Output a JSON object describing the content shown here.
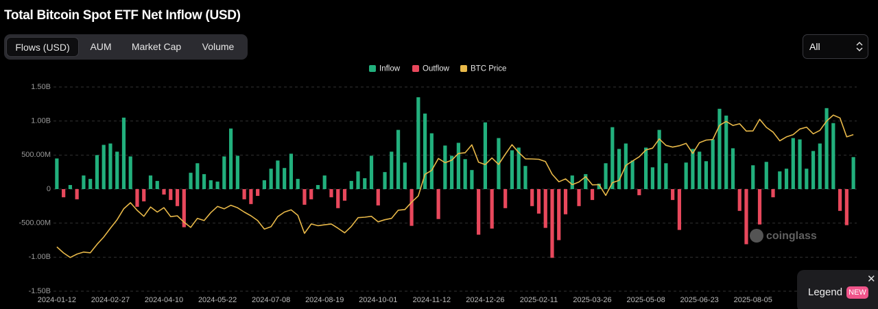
{
  "header": {
    "title": "Total Bitcoin Spot ETF Net Inflow (USD)"
  },
  "tabs": [
    "Flows (USD)",
    "AUM",
    "Market Cap",
    "Volume"
  ],
  "range_select": "All",
  "watermark": "coinglass",
  "legend_popup": {
    "label": "Legend",
    "badge": "NEW"
  },
  "chart_data": {
    "type": "bar",
    "categories": [
      "2024-01-12",
      null,
      null,
      null,
      null,
      null,
      null,
      null,
      "2024-02-27",
      null,
      null,
      null,
      null,
      null,
      null,
      null,
      "2024-04-10",
      null,
      null,
      null,
      null,
      null,
      null,
      null,
      "2024-05-22",
      null,
      null,
      null,
      null,
      null,
      null,
      null,
      "2024-07-08",
      null,
      null,
      null,
      null,
      null,
      null,
      null,
      "2024-08-19",
      null,
      null,
      null,
      null,
      null,
      null,
      null,
      "2024-10-01",
      null,
      null,
      null,
      null,
      null,
      null,
      null,
      "2024-11-12",
      null,
      null,
      null,
      null,
      null,
      null,
      null,
      "2024-12-26",
      null,
      null,
      null,
      null,
      null,
      null,
      null,
      "2025-02-11",
      null,
      null,
      null,
      null,
      null,
      null,
      null,
      "2025-03-26",
      null,
      null,
      null,
      null,
      null,
      null,
      null,
      "2025-05-08",
      null,
      null,
      null,
      null,
      null,
      null,
      null,
      "2025-06-23",
      null,
      null,
      null,
      null,
      null,
      null,
      null,
      "2025-08-05",
      null,
      null,
      null,
      null,
      null,
      null,
      null,
      null,
      null,
      null,
      null,
      null,
      null,
      null,
      null
    ],
    "series": [
      {
        "name": "Inflow",
        "type": "bar",
        "color": "#22b07d",
        "values": [
          450000000.0,
          null,
          60000000.0,
          null,
          200000000.0,
          150000000.0,
          500000000.0,
          650000000.0,
          670000000.0,
          550000000.0,
          1050000000.0,
          480000000.0,
          null,
          null,
          200000000.0,
          120000000.0,
          null,
          null,
          null,
          null,
          240000000.0,
          380000000.0,
          220000000.0,
          130000000.0,
          110000000.0,
          480000000.0,
          890000000.0,
          490000000.0,
          null,
          null,
          null,
          130000000.0,
          300000000.0,
          420000000.0,
          310000000.0,
          520000000.0,
          150000000.0,
          null,
          null,
          60000000.0,
          200000000.0,
          null,
          null,
          null,
          120000000.0,
          260000000.0,
          160000000.0,
          490000000.0,
          null,
          250000000.0,
          550000000.0,
          870000000.0,
          390000000.0,
          null,
          1350000000.0,
          1110000000.0,
          820000000.0,
          null,
          640000000.0,
          490000000.0,
          680000000.0,
          440000000.0,
          280000000.0,
          null,
          980000000.0,
          null,
          750000000.0,
          null,
          570000000.0,
          610000000.0,
          340000000.0,
          null,
          null,
          null,
          null,
          null,
          null,
          200000000.0,
          null,
          220000000.0,
          null,
          80000000.0,
          380000000.0,
          910000000.0,
          590000000.0,
          670000000.0,
          420000000.0,
          null,
          610000000.0,
          320000000.0,
          870000000.0,
          380000000.0,
          null,
          null,
          390000000.0,
          590000000.0,
          550000000.0,
          410000000.0,
          730000000.0,
          1180000000.0,
          1080000000.0,
          600000000.0,
          null,
          null,
          350000000.0,
          null,
          400000000.0,
          null,
          260000000.0,
          300000000.0,
          750000000.0,
          730000000.0,
          300000000.0,
          560000000.0,
          670000000.0,
          1190000000.0,
          970000000.0,
          null,
          null,
          470000000.0
        ]
      },
      {
        "name": "Outflow",
        "type": "bar",
        "color": "#e8485c",
        "values": [
          null,
          -120000000.0,
          null,
          -150000000.0,
          null,
          null,
          null,
          null,
          null,
          null,
          null,
          null,
          -260000000.0,
          -180000000.0,
          null,
          null,
          -80000000.0,
          -160000000.0,
          -250000000.0,
          -560000000.0,
          null,
          null,
          null,
          null,
          null,
          null,
          null,
          null,
          -150000000.0,
          -220000000.0,
          -100000000.0,
          null,
          null,
          null,
          null,
          null,
          null,
          -230000000.0,
          -150000000.0,
          null,
          null,
          -120000000.0,
          -280000000.0,
          -170000000.0,
          null,
          null,
          null,
          null,
          -240000000.0,
          null,
          null,
          null,
          null,
          -540000000.0,
          null,
          null,
          null,
          -440000000.0,
          null,
          null,
          null,
          null,
          null,
          -670000000.0,
          null,
          -580000000.0,
          null,
          -280000000.0,
          null,
          null,
          null,
          -250000000.0,
          -360000000.0,
          -570000000.0,
          -1010000000.0,
          -750000000.0,
          -370000000.0,
          null,
          -250000000.0,
          null,
          -160000000.0,
          null,
          null,
          null,
          null,
          null,
          null,
          -90000000.0,
          null,
          null,
          null,
          null,
          -160000000.0,
          -600000000.0,
          null,
          null,
          null,
          null,
          null,
          null,
          null,
          null,
          -320000000.0,
          -810000000.0,
          null,
          -520000000.0,
          null,
          -120000000.0,
          null,
          null,
          null,
          null,
          null,
          null,
          null,
          null,
          null,
          -320000000.0,
          -530000000.0,
          null
        ]
      },
      {
        "name": "BTC Price",
        "type": "line",
        "axis": "y2",
        "color": "#e9b949",
        "values": [
          46000,
          42500,
          39800,
          41800,
          43000,
          42600,
          47500,
          51800,
          57000,
          62000,
          68500,
          72000,
          67500,
          64000,
          69500,
          66500,
          69100,
          63800,
          64300,
          60500,
          57500,
          62800,
          61500,
          66200,
          69800,
          68400,
          70500,
          69000,
          66500,
          64300,
          61500,
          56500,
          57900,
          63800,
          66500,
          67800,
          64600,
          54000,
          59500,
          58500,
          59000,
          59500,
          57000,
          54300,
          58100,
          63200,
          63500,
          64000,
          60800,
          62000,
          62800,
          67600,
          68000,
          72300,
          76000,
          88700,
          91000,
          98000,
          95500,
          97000,
          101000,
          101400,
          106000,
          95800,
          94400,
          98300,
          94500,
          100500,
          106100,
          101500,
          97800,
          97700,
          97500,
          96200,
          88700,
          84300,
          86000,
          82600,
          84200,
          87300,
          82500,
          82600,
          76300,
          83800,
          85100,
          93900,
          96500,
          99000,
          103000,
          104100,
          109500,
          105700,
          104700,
          105500,
          106900,
          101000,
          107300,
          108800,
          109200,
          117500,
          119800,
          117400,
          118400,
          114100,
          114200,
          121000,
          116300,
          113500,
          108400,
          110700,
          112000,
          115300,
          116400,
          112500,
          114500,
          120000,
          123500,
          121800,
          110700,
          112000
        ]
      }
    ],
    "ylim": [
      -1500000000.0,
      1500000000.0
    ],
    "yticks": [
      {
        "value": 1500000000.0,
        "label": "1.50B"
      },
      {
        "value": 1000000000.0,
        "label": "1.00B"
      },
      {
        "value": 500000000.0,
        "label": "500.00M"
      },
      0,
      {
        "value": -500000000.0,
        "label": "-500.00M"
      },
      {
        "value": -1000000000.0,
        "label": "-1.00B"
      },
      {
        "value": -1500000000.0,
        "label": "-1.50B"
      }
    ],
    "y2lim": [
      20000,
      140000
    ],
    "grid": true,
    "legend": "top"
  }
}
